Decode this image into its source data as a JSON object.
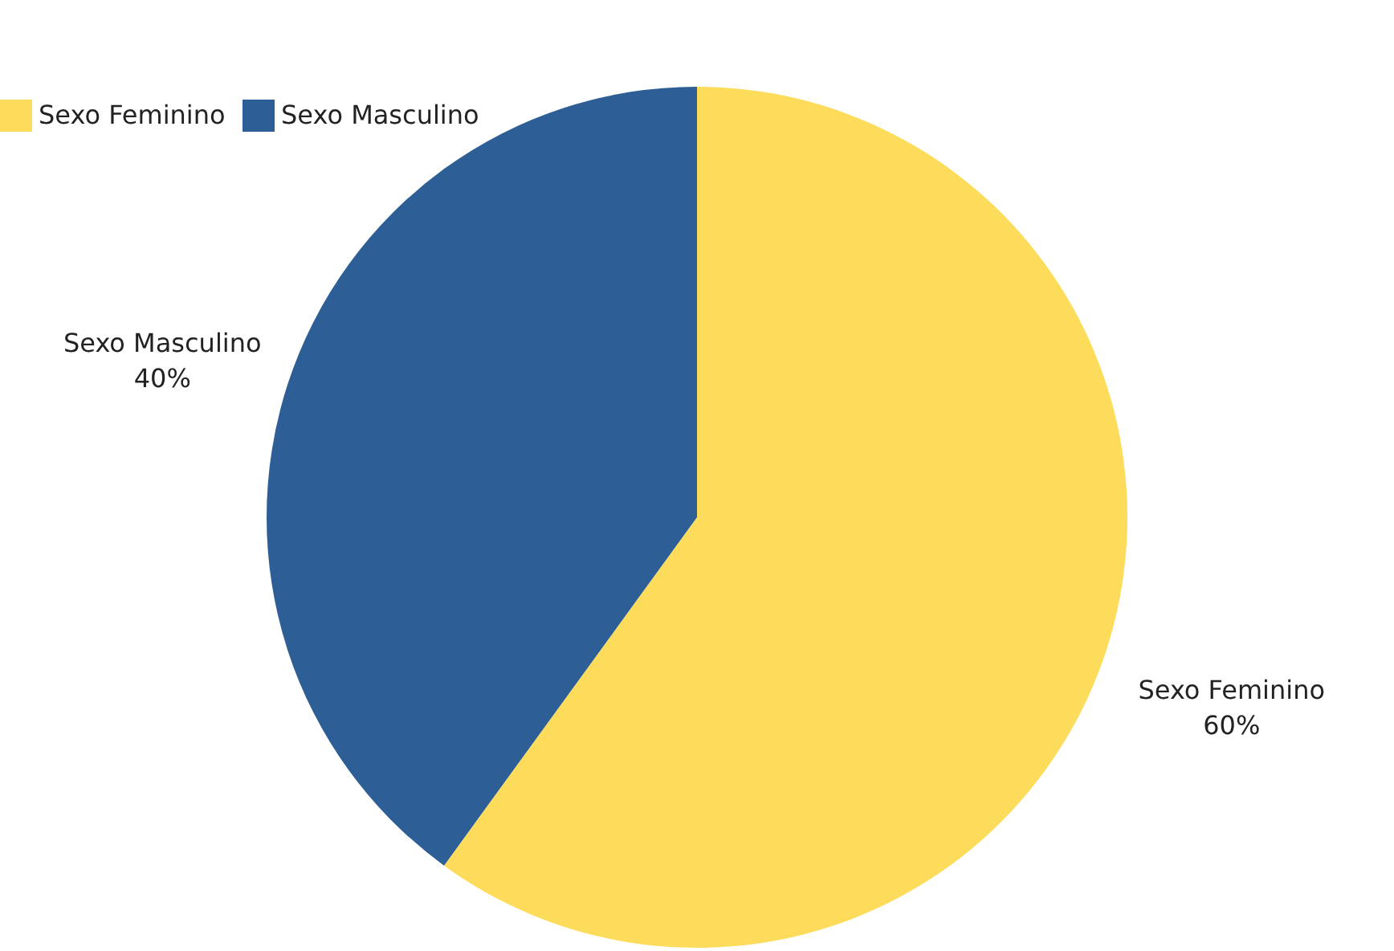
{
  "chart_data": {
    "type": "pie",
    "categories": [
      "Sexo Feminino",
      "Sexo Masculino"
    ],
    "values": [
      60,
      40
    ],
    "colors": [
      "#fddc5c",
      "#2e5e96"
    ],
    "value_labels": [
      "60%",
      "40%"
    ],
    "legend": "top"
  }
}
